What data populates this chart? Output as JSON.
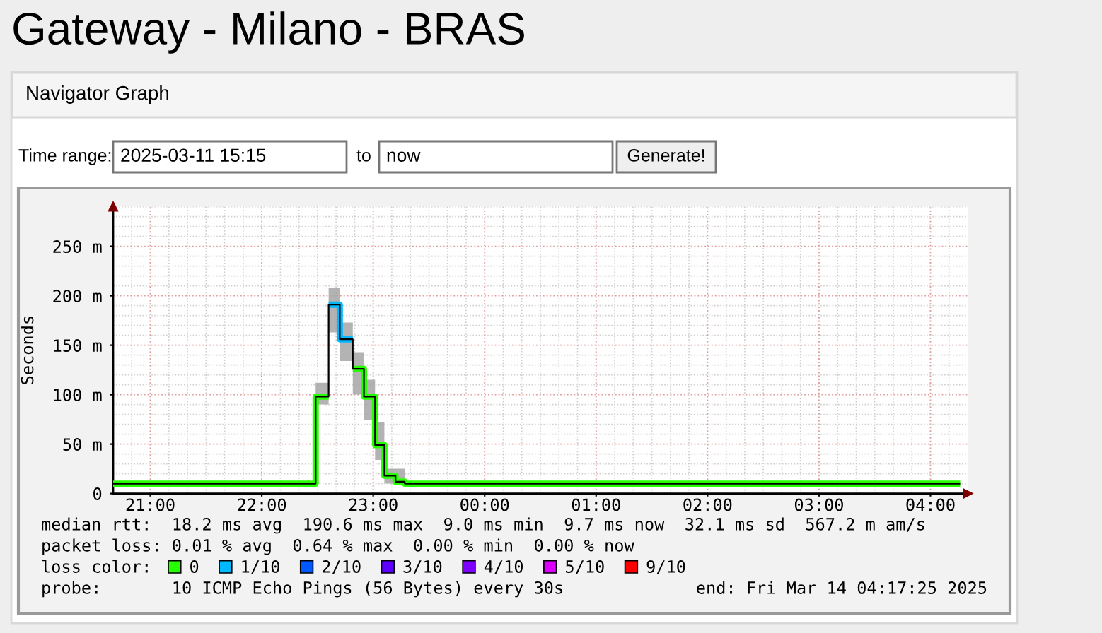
{
  "chart_data": {
    "type": "step",
    "title": "Gateway - Milano - BRAS",
    "subtitle": "Navigator Graph",
    "ylabel": "Seconds",
    "legend_title": "loss color:",
    "x": [
      "2025-03-13T20:40",
      "2025-03-13T22:29",
      "2025-03-13T22:36",
      "2025-03-13T22:42",
      "2025-03-13T22:49",
      "2025-03-13T22:55",
      "2025-03-13T23:01",
      "2025-03-13T23:06",
      "2025-03-13T23:12",
      "2025-03-13T23:17",
      "2025-03-14T04:16"
    ],
    "series": [
      {
        "color": "#000000",
        "values": [
          10,
          98,
          191,
          156,
          126,
          98,
          49,
          18,
          12,
          10,
          10
        ],
        "lower": [
          9,
          90,
          163,
          134,
          100,
          74,
          34,
          10,
          9,
          9,
          9
        ],
        "upper": [
          12,
          112,
          208,
          173,
          143,
          115,
          72,
          25,
          25,
          12,
          12
        ]
      },
      {
        "name": "0",
        "color": "#26ff00",
        "x": [
          "2025-03-13T20:40",
          "2025-03-13T22:29",
          "2025-03-13T22:36"
        ],
        "values": [
          10,
          98,
          98
        ]
      },
      {
        "color": "#26ff00",
        "x": [
          "2025-03-13T22:49",
          "2025-03-13T22:55",
          "2025-03-13T23:01",
          "2025-03-13T23:06",
          "2025-03-13T23:12",
          "2025-03-13T23:17",
          "2025-03-14T04:16"
        ],
        "values": [
          126,
          98,
          49,
          18,
          12,
          10,
          10
        ]
      },
      {
        "name": "1/10",
        "color": "#00b8ff",
        "x": [
          "2025-03-13T22:36",
          "2025-03-13T22:42",
          "2025-03-13T22:49"
        ],
        "values": [
          191,
          156,
          156
        ]
      },
      {
        "name": "2/10",
        "color": "#0059ff",
        "values": [
          null,
          null,
          null,
          null,
          null,
          null,
          null,
          null,
          null,
          null,
          null
        ]
      },
      {
        "name": "3/10",
        "color": "#5e00ff",
        "values": [
          null,
          null,
          null,
          null,
          null,
          null,
          null,
          null,
          null,
          null,
          null
        ]
      },
      {
        "name": "4/10",
        "color": "#7e00ff",
        "values": [
          null,
          null,
          null,
          null,
          null,
          null,
          null,
          null,
          null,
          null,
          null
        ]
      },
      {
        "name": "5/10",
        "color": "#dd00ff",
        "values": [
          null,
          null,
          null,
          null,
          null,
          null,
          null,
          null,
          null,
          null,
          null
        ]
      },
      {
        "name": "9/10",
        "color": "#ff0000",
        "values": [
          null,
          null,
          null,
          null,
          null,
          null,
          null,
          null,
          null,
          null,
          null
        ]
      }
    ],
    "xlim": [
      "2025-03-13T20:40",
      "2025-03-14T04:20"
    ],
    "xticks": [
      {
        "value": "2025-03-13T21:00",
        "label": "21:00"
      },
      {
        "value": "2025-03-13T22:00",
        "label": "22:00"
      },
      {
        "value": "2025-03-13T23:00",
        "label": "23:00"
      },
      {
        "value": "2025-03-14T00:00",
        "label": "00:00"
      },
      {
        "value": "2025-03-14T01:00",
        "label": "01:00"
      },
      {
        "value": "2025-03-14T02:00",
        "label": "02:00"
      },
      {
        "value": "2025-03-14T03:00",
        "label": "03:00"
      },
      {
        "value": "2025-03-14T04:00",
        "label": "04:00"
      }
    ],
    "ylim": [
      0,
      290
    ],
    "yticks": [
      0,
      {
        "value": 50,
        "label": "50 m"
      },
      {
        "value": 100,
        "label": "100 m"
      },
      {
        "value": 150,
        "label": "150 m"
      },
      {
        "value": 200,
        "label": "200 m"
      },
      {
        "value": 250,
        "label": "250 m"
      }
    ],
    "grid": true,
    "legend": "bottom",
    "annotations": [
      "Time range:",
      "2025-03-11 15:15",
      "to",
      "now",
      "Generate!",
      "median rtt:  18.2 ms avg  190.6 ms max  9.0 ms min  9.7 ms now  32.1 ms sd  567.2 m am/s",
      "packet loss: 0.01 % avg  0.64 % max  0.00 % min  0.00 % now",
      "probe:       10 ICMP Echo Pings (56 Bytes) every 30s",
      "end: Fri Mar 14 04:17:25 2025"
    ]
  }
}
